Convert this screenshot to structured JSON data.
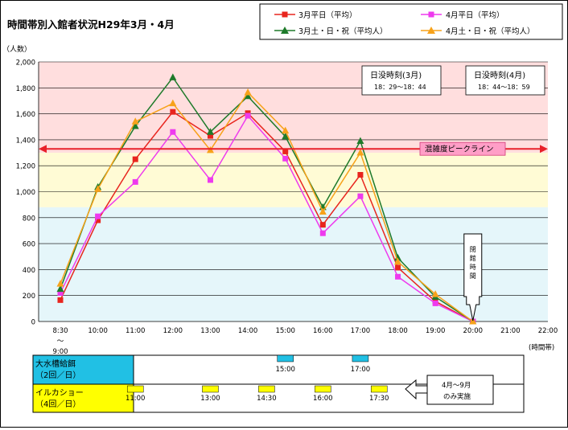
{
  "title": "時間帯別入館者状況H29年3月・4月",
  "colors": {
    "march_weekday": "#e8251e",
    "april_weekday": "#ee3aee",
    "march_holiday": "#1e7a2a",
    "april_holiday": "#f7a21a",
    "peak_line": "#e8202a",
    "peak_label_bg": "#ff9ec7",
    "zone_high": "#ffdede",
    "zone_mid": "#fffbd5",
    "zone_low": "#e5f6fa",
    "sea_lion_box": "#21c0e4",
    "dolphin_box": "#ffff00"
  },
  "chart_data": {
    "type": "line",
    "title": "時間帯別入館者状況H29年3月・4月",
    "ylabel": "（人数）",
    "xlabel": "(時間帯)",
    "ylim": [
      0,
      2000
    ],
    "yticks": [
      "0",
      "200",
      "400",
      "600",
      "800",
      "1,000",
      "1,200",
      "1,400",
      "1,600",
      "1,800",
      "2,000"
    ],
    "categories": [
      "8:30 ～ 9:00",
      "10:00",
      "11:00",
      "12:00",
      "13:00",
      "14:00",
      "15:00",
      "16:00",
      "17:00",
      "18:00",
      "19:00",
      "20:00",
      "21:00",
      "22:00"
    ],
    "legend_position": "top-right",
    "grid": true,
    "series": [
      {
        "name": "3月平日（平均）",
        "marker": "square",
        "color": "#e8251e",
        "values": [
          165,
          780,
          1250,
          1615,
          1430,
          1605,
          1310,
          745,
          1130,
          415,
          155,
          0,
          null,
          null
        ]
      },
      {
        "name": "4月平日（平均）",
        "marker": "square",
        "color": "#ee3aee",
        "values": [
          220,
          810,
          1075,
          1460,
          1090,
          1585,
          1255,
          680,
          965,
          345,
          140,
          0,
          null,
          null
        ]
      },
      {
        "name": "3月土・日・祝（平均人）",
        "marker": "triangle",
        "color": "#1e7a2a",
        "values": [
          250,
          1035,
          1505,
          1880,
          1460,
          1735,
          1425,
          880,
          1390,
          490,
          190,
          0,
          null,
          null
        ]
      },
      {
        "name": "4月土・日・祝（平均人）",
        "marker": "triangle",
        "color": "#f7a21a",
        "values": [
          290,
          1020,
          1540,
          1680,
          1320,
          1765,
          1470,
          845,
          1300,
          460,
          210,
          0,
          null,
          null
        ]
      }
    ],
    "zones": [
      {
        "from": 1300,
        "to": 2000,
        "color": "#ffdede"
      },
      {
        "from": 880,
        "to": 1300,
        "color": "#fffbd5"
      },
      {
        "from": 0,
        "to": 880,
        "color": "#e5f6fa"
      }
    ],
    "peak_line": {
      "value": 1330,
      "label": "混雑度ピークライン"
    },
    "annotations": {
      "sunset_march": {
        "title": "日没時刻(3月)",
        "range": "18：29～18：44"
      },
      "sunset_april": {
        "title": "日没時刻(4月)",
        "range": "18：44～18：59"
      },
      "closing": {
        "text": "閉館時間",
        "at": "20:00"
      }
    }
  },
  "schedule": {
    "sea_lion": {
      "label_line1": "大水槽給餌",
      "label_line2": "（2回／日）",
      "times": [
        "15:00",
        "17:00"
      ]
    },
    "dolphin": {
      "label_line1": "イルカショー",
      "label_line2": "（4回／日）",
      "times": [
        "11:00",
        "13:00",
        "14:30",
        "16:00",
        "17:30"
      ]
    },
    "dolphin_note_line1": "4月～9月",
    "dolphin_note_line2": "のみ実施"
  }
}
